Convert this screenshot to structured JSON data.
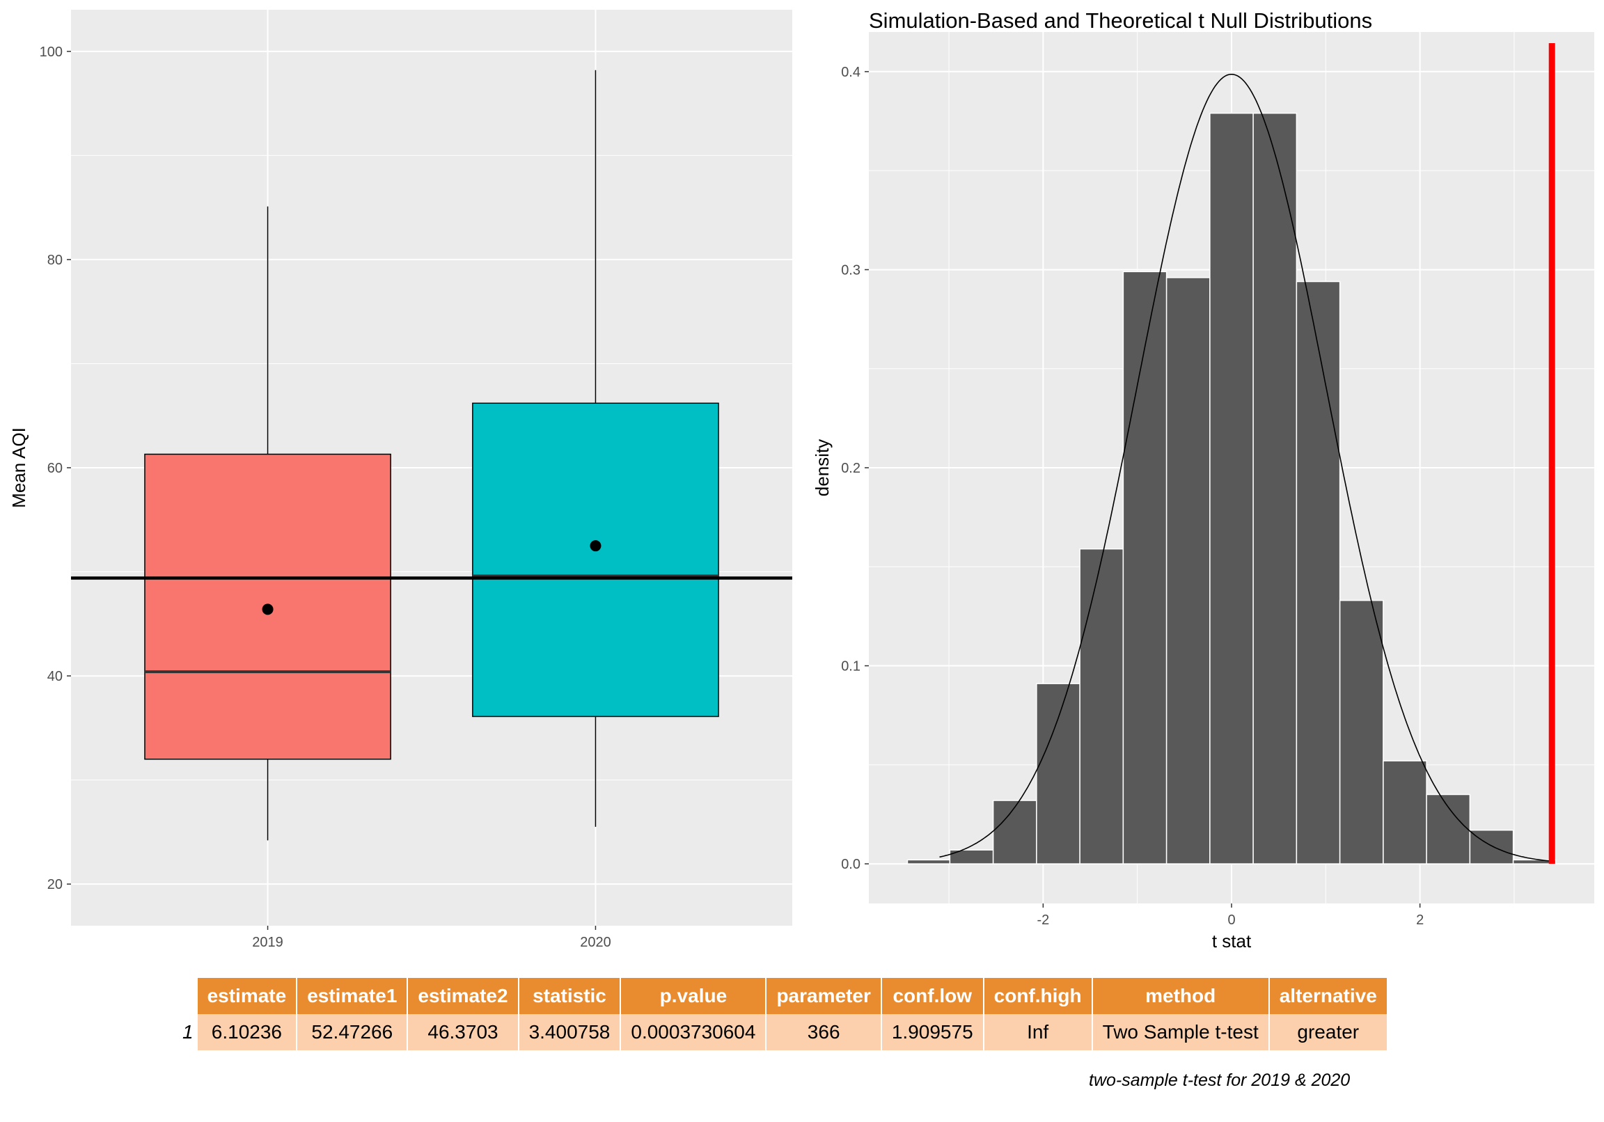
{
  "chart_data": [
    {
      "type": "box",
      "ylabel": "Mean AQI",
      "ylim": [
        16,
        104
      ],
      "yticks": [
        20,
        40,
        60,
        80,
        100
      ],
      "categories": [
        "2019",
        "2020"
      ],
      "boxes": [
        {
          "category": "2019",
          "min": 24.2,
          "q1": 32.0,
          "median": 40.4,
          "q3": 61.3,
          "max": 85.1,
          "mean": 46.4,
          "color": "#f8766d"
        },
        {
          "category": "2020",
          "min": 25.5,
          "q1": 36.1,
          "median": 49.6,
          "q3": 66.2,
          "max": 98.2,
          "mean": 52.5,
          "color": "#00bfc4"
        }
      ],
      "reference_line": 49.4,
      "grid": true
    },
    {
      "type": "histogram",
      "title": "Simulation-Based and Theoretical t Null Distributions",
      "xlabel": "t stat",
      "ylabel": "density",
      "xlim": [
        -3.85,
        3.85
      ],
      "ylim": [
        -0.02,
        0.42
      ],
      "xticks": [
        -2,
        0,
        2
      ],
      "yticks": [
        0.0,
        0.1,
        0.2,
        0.3,
        0.4
      ],
      "bins": [
        {
          "x0": -3.44,
          "x1": -2.99,
          "density": 0.002
        },
        {
          "x0": -2.99,
          "x1": -2.53,
          "density": 0.007
        },
        {
          "x0": -2.53,
          "x1": -2.07,
          "density": 0.032
        },
        {
          "x0": -2.07,
          "x1": -1.61,
          "density": 0.091
        },
        {
          "x0": -1.61,
          "x1": -1.15,
          "density": 0.159
        },
        {
          "x0": -1.15,
          "x1": -0.69,
          "density": 0.299
        },
        {
          "x0": -0.69,
          "x1": -0.23,
          "density": 0.296
        },
        {
          "x0": -0.23,
          "x1": 0.23,
          "density": 0.379
        },
        {
          "x0": 0.23,
          "x1": 0.69,
          "density": 0.379
        },
        {
          "x0": 0.69,
          "x1": 1.15,
          "density": 0.294
        },
        {
          "x0": 1.15,
          "x1": 1.61,
          "density": 0.133
        },
        {
          "x0": 1.61,
          "x1": 2.07,
          "density": 0.052
        },
        {
          "x0": 2.07,
          "x1": 2.53,
          "density": 0.035
        },
        {
          "x0": 2.53,
          "x1": 2.99,
          "density": 0.017
        },
        {
          "x0": 2.99,
          "x1": 3.44,
          "density": 0.002
        }
      ],
      "theoretical": {
        "distribution": "t",
        "df": 366,
        "x_range": [
          -3.1,
          3.4
        ]
      },
      "observed_statistic": 3.400758,
      "observed_color": "#ff0000",
      "bar_color": "#595959",
      "grid": true
    }
  ],
  "table": {
    "columns": [
      "estimate",
      "estimate1",
      "estimate2",
      "statistic",
      "p.value",
      "parameter",
      "conf.low",
      "conf.high",
      "method",
      "alternative"
    ],
    "rows": [
      {
        "rowname": "1",
        "cells": [
          "6.10236",
          "52.47266",
          "46.3703",
          "3.400758",
          "0.0003730604",
          "366",
          "1.909575",
          "Inf",
          "Two Sample t-test",
          "greater"
        ]
      }
    ],
    "caption": "two-sample t-test for 2019 & 2020"
  }
}
